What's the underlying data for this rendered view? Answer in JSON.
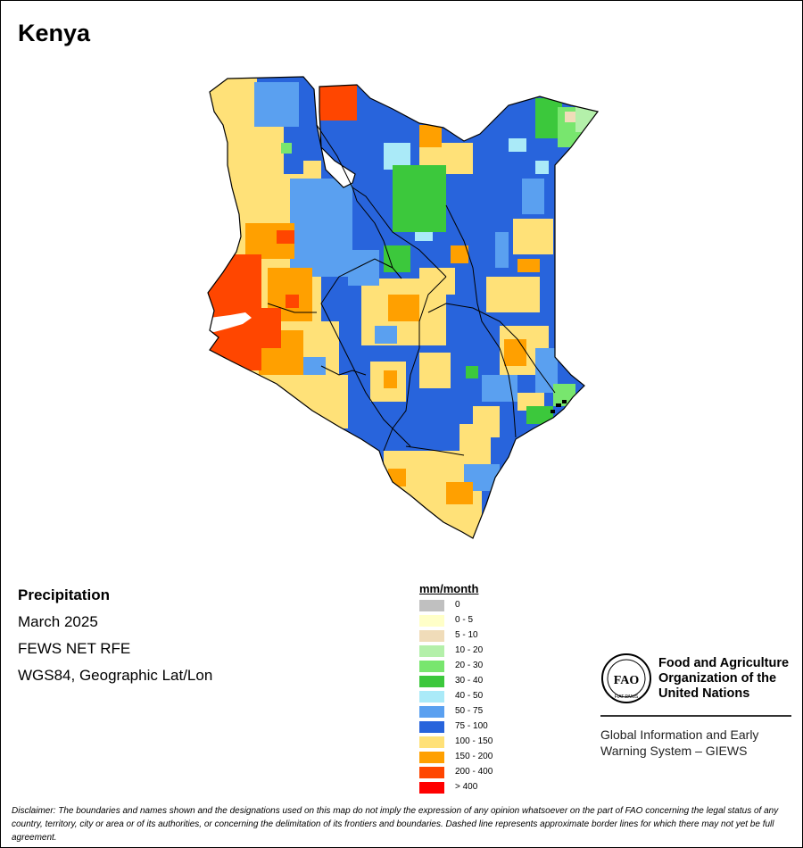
{
  "title": "Kenya",
  "info": {
    "variable": "Precipitation",
    "period": "March 2025",
    "source": "FEWS NET RFE",
    "projection": "WGS84, Geographic Lat/Lon"
  },
  "legend": {
    "title": "mm/month",
    "items": [
      {
        "label": "0",
        "color": "#c0c0c0"
      },
      {
        "label": "0 - 5",
        "color": "#ffffc8"
      },
      {
        "label": "5 - 10",
        "color": "#f0dcb9"
      },
      {
        "label": "10 - 20",
        "color": "#b4f0aa"
      },
      {
        "label": "20 - 30",
        "color": "#78e66e"
      },
      {
        "label": "30 - 40",
        "color": "#3cc83c"
      },
      {
        "label": "40 - 50",
        "color": "#aaeaf8"
      },
      {
        "label": "50 - 75",
        "color": "#5aa0f0"
      },
      {
        "label": "75 - 100",
        "color": "#2864dc"
      },
      {
        "label": "100 - 150",
        "color": "#ffe178"
      },
      {
        "label": "150 - 200",
        "color": "#ffa000"
      },
      {
        "label": "200 - 400",
        "color": "#ff4600"
      },
      {
        "label": "> 400",
        "color": "#ff0000"
      }
    ]
  },
  "organization": {
    "name": "Food and Agriculture Organization of the United Nations",
    "logo_text": "FAO",
    "logo_motto": "FIAT PANIS",
    "system": "Global Information and Early Warning System – GIEWS"
  },
  "disclaimer": "Disclaimer: The boundaries and names shown and the designations used on this map do not imply the expression of any opinion whatsoever on the part of FAO concerning the legal status of any country, territory, city or area or of its authorities, or concerning the delimitation of its frontiers and boundaries. Dashed line represents approximate border lines for which there may not yet be full agreement."
}
